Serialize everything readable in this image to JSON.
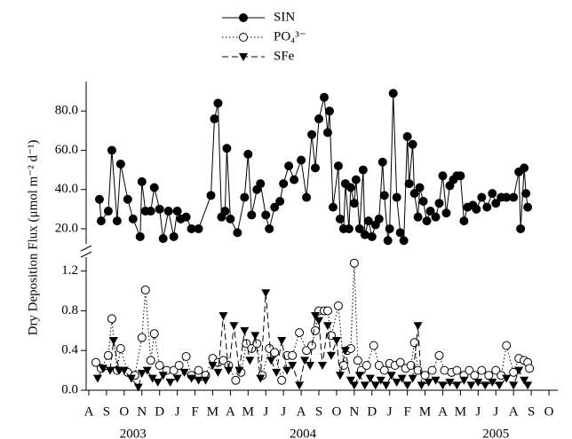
{
  "chart_data": [
    {
      "type": "line",
      "ylabel": "Dry Deposition Flux (μmol m⁻² d⁻¹)",
      "ylim": [
        12.3,
        95
      ],
      "yticks": [
        {
          "value": 20,
          "label": "20.0"
        },
        {
          "value": 40,
          "label": "40.0"
        },
        {
          "value": 60,
          "label": "60.0"
        },
        {
          "value": 80,
          "label": "80.0"
        }
      ],
      "xlim": [
        -0.15,
        26.5
      ],
      "series": [
        {
          "name": "SIN",
          "color": "#000000",
          "marker": "filled-circle",
          "linestyle": "solid",
          "x": [
            0.6,
            0.7,
            1.1,
            1.3,
            1.6,
            1.8,
            2.2,
            2.5,
            2.9,
            3.0,
            3.2,
            3.5,
            3.7,
            4.0,
            4.2,
            4.5,
            4.8,
            5.0,
            5.2,
            5.5,
            5.8,
            6.2,
            6.9,
            7.1,
            7.3,
            7.5,
            7.7,
            7.8,
            8.0,
            8.4,
            8.8,
            9.0,
            9.2,
            9.5,
            9.7,
            10.0,
            10.2,
            10.5,
            10.8,
            11.0,
            11.3,
            11.6,
            12.0,
            12.3,
            12.6,
            12.8,
            13.0,
            13.3,
            13.5,
            13.6,
            13.8,
            14.1,
            14.2,
            14.4,
            14.5,
            14.7,
            14.8,
            15.0,
            15.1,
            15.3,
            15.5,
            15.6,
            15.8,
            16.0,
            16.2,
            16.4,
            16.6,
            16.7,
            16.9,
            17.0,
            17.2,
            17.4,
            17.6,
            17.8,
            18.0,
            18.1,
            18.3,
            18.4,
            18.6,
            18.7,
            18.9,
            19.1,
            19.3,
            19.6,
            19.8,
            20.0,
            20.2,
            20.4,
            20.6,
            20.8,
            21.0,
            21.2,
            21.4,
            21.7,
            21.9,
            22.2,
            22.5,
            22.8,
            23.0,
            23.3,
            23.6,
            24.0,
            24.3,
            24.4,
            24.6,
            24.7,
            24.8
          ],
          "values": [
            35,
            24,
            29,
            60,
            24,
            53,
            35,
            25,
            16,
            44,
            29,
            29,
            41,
            30,
            15,
            29,
            16,
            29,
            25,
            26,
            20,
            20,
            37,
            76,
            84,
            26,
            29,
            61,
            25,
            18,
            36,
            58,
            27,
            40,
            43,
            27,
            20,
            31,
            34,
            43,
            52,
            45,
            55,
            36,
            68,
            51,
            76,
            87,
            69,
            80,
            31,
            52,
            25,
            20,
            43,
            20,
            41,
            33,
            45,
            20,
            50,
            17,
            24,
            16,
            22,
            25,
            54,
            37,
            14,
            20,
            89,
            36,
            18,
            14,
            67,
            43,
            63,
            38,
            26,
            41,
            34,
            24,
            29,
            26,
            33,
            47,
            28,
            42,
            45,
            47,
            47,
            24,
            31,
            32,
            30,
            36,
            31,
            38,
            33,
            36,
            36,
            36,
            49,
            20,
            51,
            38,
            31
          ]
        }
      ]
    },
    {
      "type": "line",
      "ylim": [
        0,
        1.34
      ],
      "yticks": [
        {
          "value": 0,
          "label": "0.0"
        },
        {
          "value": 0.4,
          "label": "0.4"
        },
        {
          "value": 0.8,
          "label": "0.8"
        },
        {
          "value": 1.2,
          "label": "1.2"
        }
      ],
      "xlim": [
        -0.15,
        26.5
      ],
      "xticks": [
        {
          "value": 0,
          "label": "A"
        },
        {
          "value": 1,
          "label": "S"
        },
        {
          "value": 2,
          "label": "O"
        },
        {
          "value": 3,
          "label": "N"
        },
        {
          "value": 4,
          "label": "D"
        },
        {
          "value": 5,
          "label": "J"
        },
        {
          "value": 6,
          "label": "F"
        },
        {
          "value": 7,
          "label": "M"
        },
        {
          "value": 8,
          "label": "A"
        },
        {
          "value": 9,
          "label": "M"
        },
        {
          "value": 10,
          "label": "J"
        },
        {
          "value": 11,
          "label": "J"
        },
        {
          "value": 12,
          "label": "A"
        },
        {
          "value": 13,
          "label": "S"
        },
        {
          "value": 14,
          "label": "O"
        },
        {
          "value": 15,
          "label": "N"
        },
        {
          "value": 16,
          "label": "D"
        },
        {
          "value": 17,
          "label": "J"
        },
        {
          "value": 18,
          "label": "F"
        },
        {
          "value": 19,
          "label": "M"
        },
        {
          "value": 20,
          "label": "A"
        },
        {
          "value": 21,
          "label": "M"
        },
        {
          "value": 22,
          "label": "J"
        },
        {
          "value": 23,
          "label": "J"
        },
        {
          "value": 24,
          "label": "A"
        },
        {
          "value": 25,
          "label": "S"
        },
        {
          "value": 26,
          "label": "O"
        }
      ],
      "xgroups": [
        {
          "value": 2.5,
          "label": "2003"
        },
        {
          "value": 12.1,
          "label": "2004"
        },
        {
          "value": 23,
          "label": "2005"
        }
      ],
      "series": [
        {
          "name": "PO₄³⁻",
          "color": "#000000",
          "marker": "open-circle",
          "linestyle": "dotted",
          "x": [
            0.4,
            0.7,
            1.1,
            1.3,
            1.6,
            1.8,
            2.2,
            2.6,
            3.0,
            3.2,
            3.5,
            3.7,
            4.0,
            4.4,
            4.8,
            5.1,
            5.5,
            5.8,
            6.2,
            6.6,
            7.0,
            7.3,
            7.6,
            7.9,
            8.3,
            8.6,
            8.9,
            9.2,
            9.5,
            9.8,
            10.2,
            10.5,
            10.9,
            11.2,
            11.5,
            11.9,
            12.3,
            12.6,
            12.8,
            13.0,
            13.3,
            13.5,
            13.7,
            14.1,
            14.4,
            14.6,
            14.8,
            15.0,
            15.2,
            15.4,
            15.7,
            16.1,
            16.4,
            16.7,
            17.0,
            17.3,
            17.6,
            17.9,
            18.2,
            18.4,
            18.6,
            19.0,
            19.4,
            19.8,
            20.1,
            20.5,
            20.8,
            21.2,
            21.5,
            21.8,
            22.2,
            22.6,
            23.0,
            23.3,
            23.6,
            24.0,
            24.3,
            24.6,
            24.8,
            24.9
          ],
          "values": [
            0.28,
            0.22,
            0.35,
            0.72,
            0.2,
            0.42,
            0.18,
            0.15,
            0.53,
            1.01,
            0.3,
            0.57,
            0.25,
            0.2,
            0.2,
            0.25,
            0.34,
            0.15,
            0.2,
            0.15,
            0.32,
            0.28,
            0.3,
            0.25,
            0.1,
            0.18,
            0.47,
            0.42,
            0.47,
            0.15,
            0.42,
            0.38,
            0.1,
            0.35,
            0.35,
            0.58,
            0.4,
            0.45,
            0.6,
            0.8,
            0.8,
            0.8,
            0.55,
            0.85,
            0.25,
            0.4,
            0.42,
            1.28,
            0.3,
            0.2,
            0.25,
            0.45,
            0.25,
            0.2,
            0.27,
            0.25,
            0.28,
            0.22,
            0.25,
            0.48,
            0.2,
            0.15,
            0.2,
            0.35,
            0.2,
            0.18,
            0.2,
            0.15,
            0.2,
            0.15,
            0.2,
            0.15,
            0.2,
            0.15,
            0.45,
            0.18,
            0.32,
            0.3,
            0.28,
            0.22
          ]
        },
        {
          "name": "SFe",
          "color": "#000000",
          "marker": "down-triangle",
          "linestyle": "dashed",
          "x": [
            0.5,
            0.8,
            1.2,
            1.4,
            1.7,
            2.0,
            2.4,
            2.8,
            3.0,
            3.3,
            3.6,
            3.9,
            4.2,
            4.6,
            5.0,
            5.4,
            5.8,
            6.2,
            6.6,
            7.0,
            7.3,
            7.6,
            7.9,
            8.2,
            8.5,
            8.8,
            9.1,
            9.4,
            9.7,
            10.0,
            10.3,
            10.6,
            10.9,
            11.2,
            11.5,
            11.9,
            12.2,
            12.5,
            12.8,
            13.0,
            13.2,
            13.5,
            13.7,
            14.0,
            14.2,
            14.5,
            14.8,
            15.0,
            15.3,
            15.6,
            15.9,
            16.2,
            16.5,
            16.8,
            17.1,
            17.4,
            17.7,
            18.0,
            18.3,
            18.6,
            18.8,
            19.2,
            19.6,
            20.0,
            20.4,
            20.8,
            21.2,
            21.6,
            22.0,
            22.4,
            22.8,
            23.2,
            23.6,
            24.0,
            24.3,
            24.6,
            24.8
          ],
          "values": [
            0.12,
            0.22,
            0.2,
            0.5,
            0.2,
            0.2,
            0.12,
            0.03,
            0.17,
            0.2,
            0.12,
            0.08,
            0.15,
            0.08,
            0.12,
            0.18,
            0.12,
            0.1,
            0.1,
            0.25,
            0.18,
            0.75,
            0.2,
            0.65,
            0.2,
            0.6,
            0.3,
            0.55,
            0.12,
            0.98,
            0.3,
            0.18,
            0.5,
            0.2,
            0.25,
            0.05,
            0.3,
            0.25,
            0.75,
            0.7,
            0.25,
            0.65,
            0.35,
            0.5,
            0.15,
            0.4,
            0.1,
            0.05,
            0.15,
            0.05,
            0.12,
            0.05,
            0.1,
            0.05,
            0.15,
            0.08,
            0.12,
            0.05,
            0.12,
            0.65,
            0.05,
            0.08,
            0.1,
            0.05,
            0.08,
            0.05,
            0.1,
            0.05,
            0.08,
            0.05,
            0.08,
            0.05,
            0.12,
            0.05,
            0.2,
            0.1,
            0.05
          ]
        }
      ]
    }
  ]
}
